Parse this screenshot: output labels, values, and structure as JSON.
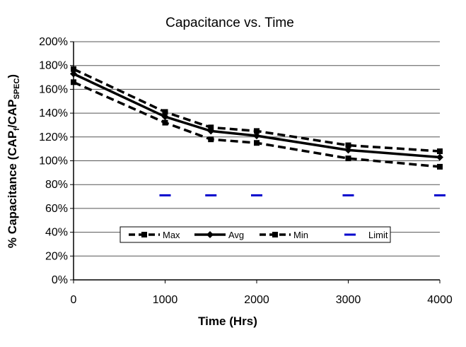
{
  "chart_data": {
    "type": "line",
    "title": "Capacitance vs. Time",
    "xlabel": "Time (Hrs)",
    "ylabel": {
      "prefix": "% Capacitance (CAP",
      "sub1": "f",
      "mid": "/CAP",
      "sub2": "SPEC",
      "suffix": ")"
    },
    "xlim": [
      0,
      4000
    ],
    "ylim": [
      0,
      200
    ],
    "x_ticks": [
      0,
      1000,
      2000,
      3000,
      4000
    ],
    "x_tick_labels": [
      "0",
      "1000",
      "2000",
      "3000",
      "4000"
    ],
    "y_ticks": [
      0,
      20,
      40,
      60,
      80,
      100,
      120,
      140,
      160,
      180,
      200
    ],
    "y_tick_labels": [
      "0%",
      "20%",
      "40%",
      "60%",
      "80%",
      "100%",
      "120%",
      "140%",
      "160%",
      "180%",
      "200%"
    ],
    "grid": "horizontal",
    "legend_position": "bottom-center",
    "x": [
      0,
      1000,
      1500,
      2000,
      3000,
      4000
    ],
    "series": [
      {
        "name": "Max",
        "style": "dashed",
        "marker": "square",
        "values": [
          177,
          141,
          128,
          125,
          113,
          108
        ]
      },
      {
        "name": "Avg",
        "style": "solid",
        "marker": "diamond",
        "values": [
          173,
          137,
          125,
          121,
          109,
          103
        ]
      },
      {
        "name": "Min",
        "style": "dashed",
        "marker": "square",
        "values": [
          166,
          132,
          118,
          115,
          102,
          95
        ]
      },
      {
        "name": "Limit",
        "style": "marker-only",
        "marker": "dash",
        "color": "#0000cc",
        "x": [
          1000,
          1500,
          2000,
          3000,
          4000
        ],
        "values": [
          71,
          71,
          71,
          71,
          71
        ]
      }
    ]
  }
}
